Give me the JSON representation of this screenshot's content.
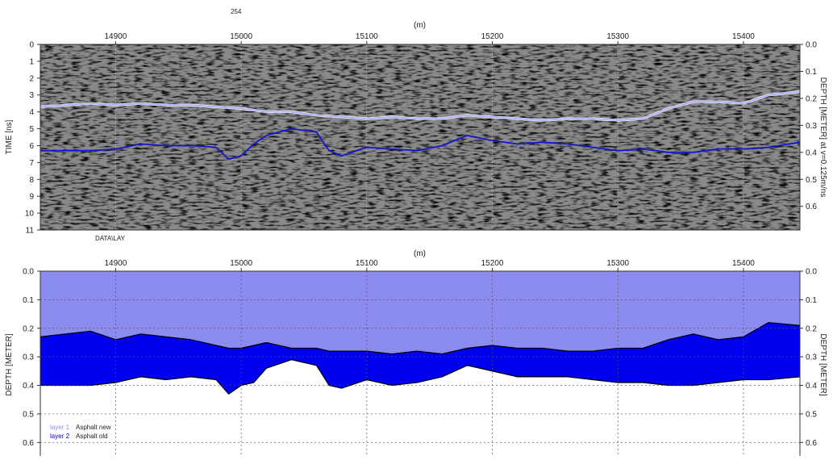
{
  "figure": {
    "profile_label": "254",
    "file_label": "DATA\\LAY"
  },
  "colors": {
    "layer1": "#8c8cf0",
    "layer2": "#0000f0",
    "layer1_trace": "#a8a8ff",
    "layer2_trace": "#1515d0",
    "grid": "#555555"
  },
  "chart_data": [
    {
      "type": "heatmap",
      "title": "",
      "xlabel": "(m)",
      "ylabel": "TIME [ns]",
      "ylabel_right": "DEPTH [METER] at v=0.125m/ns",
      "xlim": [
        14840,
        15445
      ],
      "ylim": [
        0,
        11
      ],
      "y2lim": [
        0,
        0.6875
      ],
      "x_ticks": [
        14900,
        15000,
        15100,
        15200,
        15300,
        15400
      ],
      "y_ticks": [
        0,
        1,
        2,
        3,
        4,
        5,
        6,
        7,
        8,
        9,
        10,
        11
      ],
      "y2_ticks": [
        "0.0",
        "0.1",
        "0.2",
        "0.3",
        "0.4",
        "0.5",
        "0.6"
      ],
      "y_tick_labels": [
        "0",
        "1",
        "2",
        "3",
        "4",
        "5",
        "6",
        "7",
        "8",
        "9",
        "10",
        "11"
      ],
      "x_tick_labels": [
        "14900",
        "15000",
        "15100",
        "15200",
        "15300",
        "15400"
      ],
      "series": [
        {
          "x": [
            14840,
            14860,
            14880,
            14900,
            14920,
            14940,
            14960,
            14980,
            15000,
            15020,
            15040,
            15060,
            15080,
            15100,
            15120,
            15140,
            15160,
            15180,
            15200,
            15220,
            15240,
            15260,
            15280,
            15300,
            15320,
            15340,
            15360,
            15380,
            15400,
            15420,
            15445
          ],
          "y": [
            3.7,
            3.6,
            3.5,
            3.6,
            3.5,
            3.6,
            3.6,
            3.7,
            3.8,
            4.0,
            4.0,
            4.2,
            4.3,
            4.4,
            4.3,
            4.4,
            4.4,
            4.2,
            4.3,
            4.4,
            4.5,
            4.4,
            4.4,
            4.5,
            4.4,
            3.8,
            3.4,
            3.4,
            3.5,
            3.0,
            2.8
          ]
        },
        {
          "x": [
            14840,
            14860,
            14880,
            14900,
            14920,
            14940,
            14960,
            14980,
            14990,
            15000,
            15010,
            15020,
            15040,
            15060,
            15070,
            15080,
            15100,
            15120,
            15140,
            15160,
            15180,
            15200,
            15220,
            15240,
            15260,
            15280,
            15300,
            15320,
            15340,
            15360,
            15380,
            15400,
            15420,
            15445
          ],
          "y": [
            6.3,
            6.3,
            6.3,
            6.2,
            5.9,
            6.0,
            6.0,
            6.1,
            6.8,
            6.6,
            5.9,
            5.4,
            5.0,
            5.2,
            6.3,
            6.6,
            6.1,
            6.2,
            6.3,
            6.0,
            5.4,
            5.7,
            5.9,
            5.8,
            5.9,
            6.1,
            6.3,
            6.2,
            6.4,
            6.4,
            6.2,
            6.2,
            6.1,
            5.8
          ]
        }
      ]
    },
    {
      "type": "area",
      "title": "",
      "xlabel": "(m)",
      "ylabel": "DEPTH [METER]",
      "ylabel_right": "DEPTH [METER]",
      "xlim": [
        14840,
        15445
      ],
      "ylim": [
        0,
        0.65
      ],
      "x_ticks": [
        14900,
        15000,
        15100,
        15200,
        15300,
        15400
      ],
      "y_ticks": [
        0,
        0.1,
        0.2,
        0.3,
        0.4,
        0.5,
        0.6
      ],
      "x_tick_labels": [
        "14900",
        "15000",
        "15100",
        "15200",
        "15300",
        "15400"
      ],
      "y_tick_labels": [
        "0.0",
        "0.1",
        "0.2",
        "0.3",
        "0.4",
        "0.5",
        "0.6"
      ],
      "x": [
        14840,
        14860,
        14880,
        14900,
        14920,
        14940,
        14960,
        14980,
        14990,
        15000,
        15010,
        15020,
        15040,
        15060,
        15070,
        15080,
        15100,
        15120,
        15140,
        15160,
        15180,
        15200,
        15220,
        15240,
        15260,
        15280,
        15300,
        15320,
        15340,
        15360,
        15380,
        15400,
        15420,
        15445
      ],
      "series": [
        {
          "name": "layer 1",
          "desc": "Asphalt new",
          "values": [
            0.23,
            0.22,
            0.21,
            0.24,
            0.22,
            0.23,
            0.24,
            0.26,
            0.27,
            0.27,
            0.26,
            0.25,
            0.27,
            0.27,
            0.28,
            0.28,
            0.28,
            0.29,
            0.28,
            0.29,
            0.27,
            0.26,
            0.27,
            0.27,
            0.28,
            0.28,
            0.27,
            0.27,
            0.24,
            0.22,
            0.24,
            0.23,
            0.18,
            0.19
          ]
        },
        {
          "name": "layer 2",
          "desc": "Asphalt old",
          "values": [
            0.4,
            0.4,
            0.4,
            0.39,
            0.37,
            0.38,
            0.37,
            0.38,
            0.43,
            0.4,
            0.39,
            0.34,
            0.31,
            0.33,
            0.4,
            0.41,
            0.38,
            0.4,
            0.39,
            0.37,
            0.33,
            0.35,
            0.37,
            0.37,
            0.37,
            0.38,
            0.39,
            0.39,
            0.4,
            0.4,
            0.39,
            0.38,
            0.38,
            0.37
          ]
        }
      ],
      "legend": "bottom-left"
    }
  ]
}
